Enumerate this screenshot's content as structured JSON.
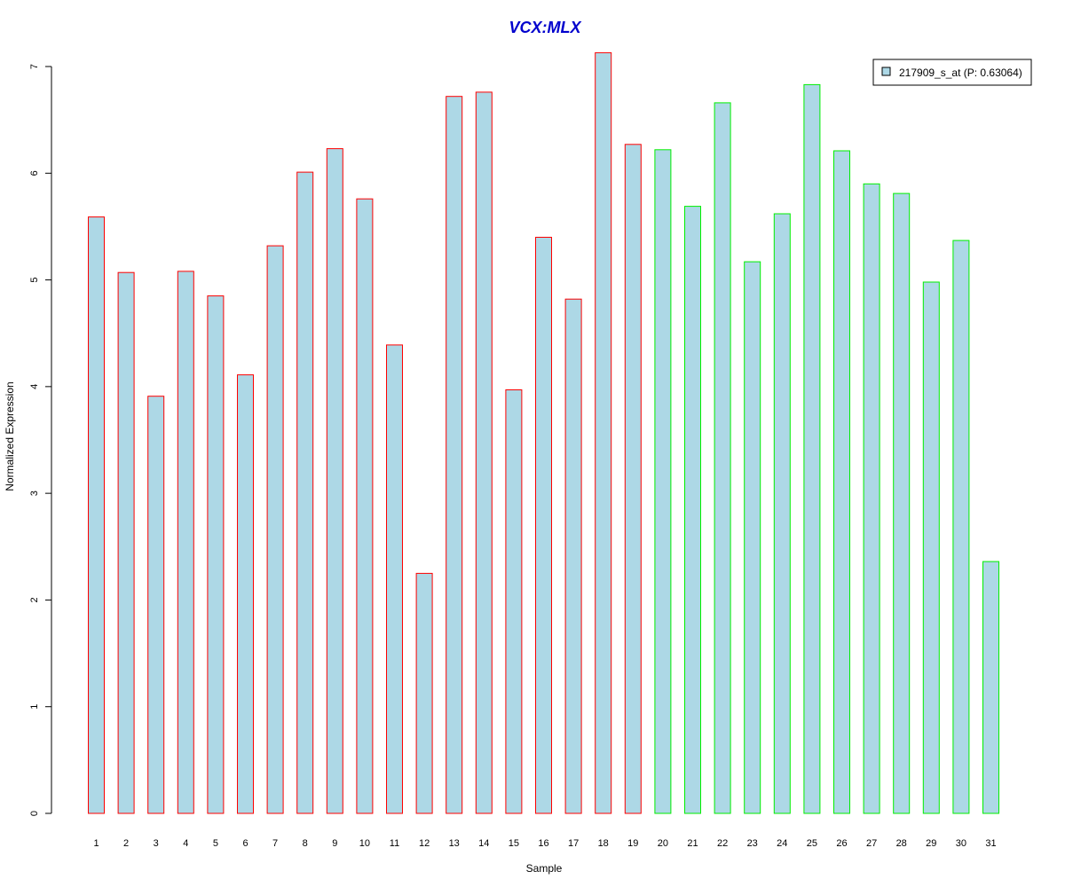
{
  "chart_data": {
    "type": "bar",
    "title": "VCX:MLX",
    "xlabel": "Sample",
    "ylabel": "Normalized Expression",
    "ylim": [
      0,
      7
    ],
    "yticks": [
      0,
      1,
      2,
      3,
      4,
      5,
      6,
      7
    ],
    "categories": [
      "1",
      "2",
      "3",
      "4",
      "5",
      "6",
      "7",
      "8",
      "9",
      "10",
      "11",
      "12",
      "13",
      "14",
      "15",
      "16",
      "17",
      "18",
      "19",
      "20",
      "21",
      "22",
      "23",
      "24",
      "25",
      "26",
      "27",
      "28",
      "29",
      "30",
      "31"
    ],
    "values": [
      5.59,
      5.07,
      3.91,
      5.08,
      4.85,
      4.11,
      5.32,
      6.01,
      6.23,
      5.76,
      4.39,
      2.25,
      6.72,
      6.76,
      3.97,
      5.4,
      4.82,
      7.13,
      6.27,
      6.22,
      5.69,
      6.66,
      5.17,
      5.62,
      6.83,
      6.21,
      5.9,
      5.81,
      4.98,
      5.37,
      2.36
    ],
    "groups": [
      1,
      1,
      1,
      1,
      1,
      1,
      1,
      1,
      1,
      1,
      1,
      1,
      1,
      1,
      1,
      1,
      1,
      1,
      1,
      2,
      2,
      2,
      2,
      2,
      2,
      2,
      2,
      2,
      2,
      2,
      2
    ],
    "grid": false,
    "legend": {
      "placement": "top-right",
      "entries": [
        "217909_s_at (P: 0.63064)"
      ]
    },
    "colors": {
      "bar_fill": "#add8e6",
      "group1_border": "#ff0000",
      "group2_border": "#00ee00",
      "title": "#0000cd",
      "axis": "#000000"
    }
  }
}
